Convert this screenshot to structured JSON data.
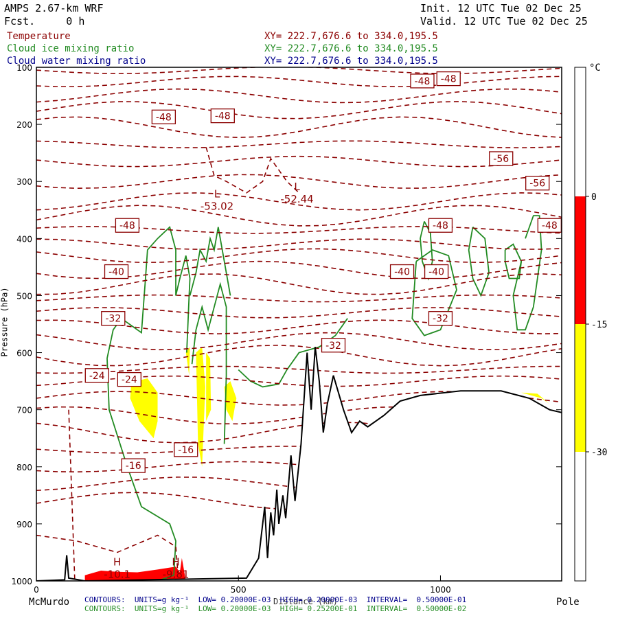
{
  "header": {
    "model": "AMPS 2.67-km WRF",
    "fcst": "Fcst.     0 h",
    "init": "Init. 12 UTC Tue 02 Dec 25",
    "valid": "Valid. 12 UTC Tue 02 Dec 25"
  },
  "legend": {
    "items": [
      {
        "name": "Temperature",
        "xy": "XY= 222.7,676.6 to 334.0,195.5",
        "color": "#8b0000"
      },
      {
        "name": "Cloud ice mixing ratio",
        "xy": "XY= 222.7,676.6 to 334.0,195.5",
        "color": "#228b22"
      },
      {
        "name": "Cloud water mixing ratio",
        "xy": "XY= 222.7,676.6 to 334.0,195.5",
        "color": "#00008b"
      }
    ]
  },
  "footer": {
    "left_label": "McMurdo",
    "right_label": "Pole",
    "water_contours": "CONTOURS:  UNITS=g kg⁻¹  LOW= 0.20000E-03  HIGH= 0.20000E-03  INTERVAL=  0.50000E-01",
    "ice_contours": "CONTOURS:  UNITS=g kg⁻¹  LOW= 0.20000E-03  HIGH= 0.25200E-01  INTERVAL=  0.50000E-02"
  },
  "chart_data": {
    "type": "cross-section",
    "xlabel": "Distance (km)",
    "ylabel": "Pressure (hPa)",
    "xlim": [
      0,
      1300
    ],
    "ylim": [
      1000,
      100
    ],
    "x_ticks": [
      0,
      500,
      1000
    ],
    "y_ticks": [
      100,
      200,
      300,
      400,
      500,
      600,
      700,
      800,
      900,
      1000
    ],
    "colorbar": {
      "unit": "°C",
      "ticks": [
        "0",
        "-15",
        "-30"
      ],
      "bands": [
        {
          "from": "top",
          "to": "0",
          "color": "#ffffff"
        },
        {
          "from": "0",
          "to": "-15",
          "color": "#ff0000"
        },
        {
          "from": "-15",
          "to": "-30",
          "color": "#ffff00"
        },
        {
          "from": "-30",
          "to": "bottom",
          "color": "#ffffff"
        }
      ]
    },
    "temperature_labels": [
      {
        "text": "-48",
        "x": 315,
        "p": 187
      },
      {
        "text": "-48",
        "x": 461,
        "p": 185
      },
      {
        "text": "-48",
        "x": 955,
        "p": 124
      },
      {
        "text": "-48",
        "x": 1020,
        "p": 120
      },
      {
        "text": "-56",
        "x": 1150,
        "p": 260
      },
      {
        "text": "-56",
        "x": 1240,
        "p": 303
      },
      {
        "text": "-48",
        "x": 225,
        "p": 377
      },
      {
        "text": "-48",
        "x": 1000,
        "p": 377
      },
      {
        "text": "-48",
        "x": 1270,
        "p": 377
      },
      {
        "text": "-40",
        "x": 198,
        "p": 458
      },
      {
        "text": "-40",
        "x": 905,
        "p": 458
      },
      {
        "text": "-40",
        "x": 990,
        "p": 458
      },
      {
        "text": "-32",
        "x": 190,
        "p": 540
      },
      {
        "text": "-32",
        "x": 1000,
        "p": 540
      },
      {
        "text": "-32",
        "x": 735,
        "p": 587
      },
      {
        "text": "-24",
        "x": 150,
        "p": 640
      },
      {
        "text": "-24",
        "x": 230,
        "p": 647
      },
      {
        "text": "-16",
        "x": 240,
        "p": 798
      },
      {
        "text": "-16",
        "x": 370,
        "p": 770
      }
    ],
    "extrema": [
      {
        "kind": "L",
        "value": "-53.02",
        "x": 447,
        "p": 345
      },
      {
        "kind": "L",
        "value": "-52.44",
        "x": 645,
        "p": 332
      },
      {
        "kind": "H",
        "value": "-10.1",
        "x": 200,
        "p": 990
      },
      {
        "kind": "H",
        "value": "-9.81",
        "x": 345,
        "p": 990
      }
    ],
    "terrain": [
      [
        0,
        1000
      ],
      [
        70,
        998
      ],
      [
        75,
        955
      ],
      [
        80,
        995
      ],
      [
        120,
        1000
      ],
      [
        520,
        995
      ],
      [
        550,
        960
      ],
      [
        565,
        870
      ],
      [
        572,
        960
      ],
      [
        580,
        880
      ],
      [
        587,
        920
      ],
      [
        595,
        840
      ],
      [
        600,
        900
      ],
      [
        610,
        850
      ],
      [
        617,
        890
      ],
      [
        630,
        780
      ],
      [
        640,
        860
      ],
      [
        655,
        760
      ],
      [
        670,
        600
      ],
      [
        680,
        700
      ],
      [
        690,
        590
      ],
      [
        700,
        650
      ],
      [
        710,
        740
      ],
      [
        720,
        690
      ],
      [
        735,
        640
      ],
      [
        760,
        700
      ],
      [
        780,
        740
      ],
      [
        800,
        720
      ],
      [
        820,
        730
      ],
      [
        860,
        710
      ],
      [
        900,
        685
      ],
      [
        950,
        675
      ],
      [
        1050,
        667
      ],
      [
        1150,
        667
      ],
      [
        1220,
        680
      ],
      [
        1270,
        700
      ],
      [
        1300,
        705
      ]
    ]
  }
}
